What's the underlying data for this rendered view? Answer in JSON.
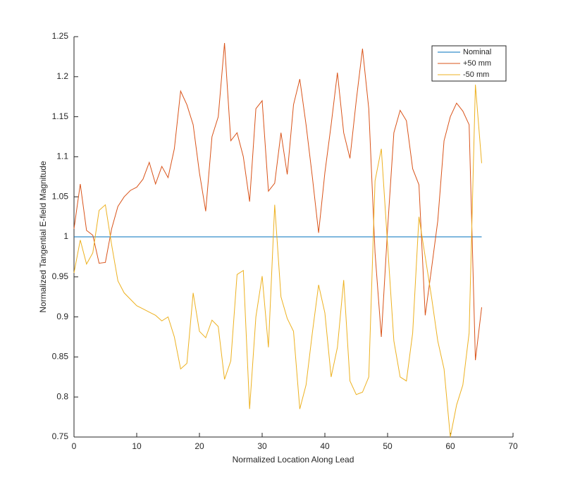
{
  "chart_data": {
    "type": "line",
    "xlabel": "Normalized Location Along Lead",
    "ylabel": "Normalized Tangential E-field Magnitude",
    "x": [
      0,
      1,
      2,
      3,
      4,
      5,
      6,
      7,
      8,
      9,
      10,
      11,
      12,
      13,
      14,
      15,
      16,
      17,
      18,
      19,
      20,
      21,
      22,
      23,
      24,
      25,
      26,
      27,
      28,
      29,
      30,
      31,
      32,
      33,
      34,
      35,
      36,
      37,
      38,
      39,
      40,
      41,
      42,
      43,
      44,
      45,
      46,
      47,
      48,
      49,
      50,
      51,
      52,
      53,
      54,
      55,
      56,
      57,
      58,
      59,
      60,
      61,
      62,
      63,
      64,
      65
    ],
    "series": [
      {
        "name": "Nominal",
        "color": "#0072bd",
        "values": [
          1,
          1,
          1,
          1,
          1,
          1,
          1,
          1,
          1,
          1,
          1,
          1,
          1,
          1,
          1,
          1,
          1,
          1,
          1,
          1,
          1,
          1,
          1,
          1,
          1,
          1,
          1,
          1,
          1,
          1,
          1,
          1,
          1,
          1,
          1,
          1,
          1,
          1,
          1,
          1,
          1,
          1,
          1,
          1,
          1,
          1,
          1,
          1,
          1,
          1,
          1,
          1,
          1,
          1,
          1,
          1,
          1,
          1,
          1,
          1,
          1,
          1,
          1,
          1,
          1,
          1
        ]
      },
      {
        "name": "+50 mm",
        "color": "#d95319",
        "values": [
          1.01,
          1.066,
          1.008,
          1.002,
          0.967,
          0.968,
          1.01,
          1.038,
          1.05,
          1.058,
          1.062,
          1.072,
          1.093,
          1.066,
          1.088,
          1.074,
          1.11,
          1.182,
          1.165,
          1.14,
          1.08,
          1.032,
          1.125,
          1.15,
          1.242,
          1.12,
          1.13,
          1.1,
          1.044,
          1.16,
          1.17,
          1.057,
          1.067,
          1.13,
          1.078,
          1.165,
          1.197,
          1.14,
          1.075,
          1.005,
          1.08,
          1.14,
          1.205,
          1.13,
          1.098,
          1.17,
          1.235,
          1.16,
          0.98,
          0.875,
          1.01,
          1.13,
          1.158,
          1.145,
          1.085,
          1.065,
          0.902,
          0.96,
          1.02,
          1.12,
          1.15,
          1.167,
          1.157,
          1.14,
          0.846,
          0.912
        ]
      },
      {
        "name": "-50 mm",
        "color": "#edb120",
        "values": [
          0.955,
          0.996,
          0.966,
          0.98,
          1.033,
          1.04,
          0.99,
          0.945,
          0.93,
          0.922,
          0.914,
          0.91,
          0.906,
          0.902,
          0.895,
          0.9,
          0.875,
          0.835,
          0.842,
          0.93,
          0.882,
          0.874,
          0.896,
          0.888,
          0.822,
          0.845,
          0.953,
          0.958,
          0.785,
          0.9,
          0.951,
          0.862,
          1.04,
          0.925,
          0.898,
          0.882,
          0.785,
          0.815,
          0.88,
          0.94,
          0.905,
          0.825,
          0.862,
          0.946,
          0.82,
          0.803,
          0.806,
          0.825,
          1.07,
          1.11,
          0.99,
          0.87,
          0.825,
          0.82,
          0.88,
          1.025,
          0.975,
          0.925,
          0.87,
          0.835,
          0.75,
          0.79,
          0.815,
          0.88,
          1.19,
          1.092
        ]
      }
    ],
    "xlim": [
      0,
      70
    ],
    "xticks": [
      0,
      10,
      20,
      30,
      40,
      50,
      60,
      70
    ],
    "ylim": [
      0.75,
      1.25
    ],
    "yticks": [
      0.75,
      0.8,
      0.85,
      0.9,
      0.95,
      1,
      1.05,
      1.1,
      1.15,
      1.2,
      1.25
    ],
    "legend": "northeast"
  }
}
